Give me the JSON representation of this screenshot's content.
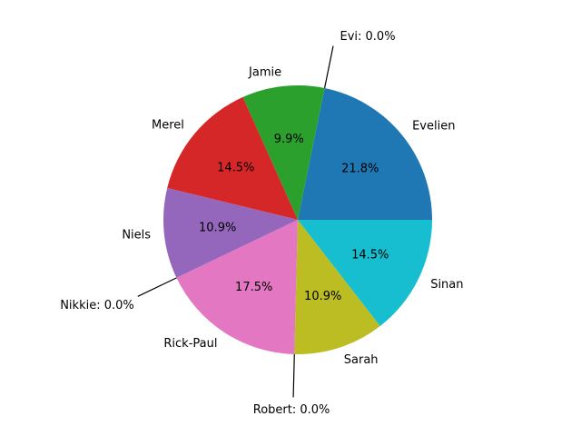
{
  "chart_data": {
    "type": "pie",
    "slices": [
      {
        "label": "Evelien",
        "value": 21.8,
        "pct_label": "21.8%",
        "color": "#1f77b4"
      },
      {
        "label": "Evi",
        "value": 0.0,
        "pct_label": "",
        "color": "#ff7f0e",
        "callout": "Evi: 0.0%"
      },
      {
        "label": "Jamie",
        "value": 9.9,
        "pct_label": "9.9%",
        "color": "#2ca02c"
      },
      {
        "label": "Merel",
        "value": 14.5,
        "pct_label": "14.5%",
        "color": "#d62728"
      },
      {
        "label": "Niels",
        "value": 10.9,
        "pct_label": "10.9%",
        "color": "#9467bd"
      },
      {
        "label": "Nikkie",
        "value": 0.0,
        "pct_label": "",
        "color": "#8c564b",
        "callout": "Nikkie: 0.0%"
      },
      {
        "label": "Rick-Paul",
        "value": 17.5,
        "pct_label": "17.5%",
        "color": "#e377c2"
      },
      {
        "label": "Robert",
        "value": 0.0,
        "pct_label": "",
        "color": "#7f7f7f",
        "callout": "Robert: 0.0%"
      },
      {
        "label": "Sarah",
        "value": 10.9,
        "pct_label": "10.9%",
        "color": "#bcbd22"
      },
      {
        "label": "Sinan",
        "value": 14.5,
        "pct_label": "14.5%",
        "color": "#17becf"
      }
    ],
    "start_angle_deg": 0,
    "direction": "counterclockwise",
    "title": ""
  }
}
